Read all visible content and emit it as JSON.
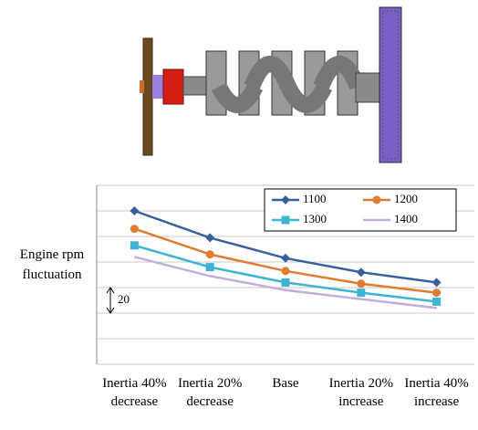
{
  "chart_data": {
    "type": "line",
    "y_label": "Engine rpm fluctuation",
    "categories": [
      "Inertia 40% decrease",
      "Inertia 20% decrease",
      "Base",
      "Inertia 20% increase",
      "Inertia 40% increase"
    ],
    "series": [
      {
        "name": "1100",
        "color": "#3b5f9e",
        "marker": "diamond",
        "values": [
          120,
          99,
          83,
          72,
          64
        ]
      },
      {
        "name": "1200",
        "color": "#e07b32",
        "marker": "circle",
        "values": [
          106,
          86,
          73,
          63,
          56
        ]
      },
      {
        "name": "1300",
        "color": "#3cb4d2",
        "marker": "square",
        "values": [
          93,
          76,
          64,
          56,
          49
        ]
      },
      {
        "name": "1400",
        "color": "#c3aedb",
        "marker": "none",
        "values": [
          84,
          69,
          58,
          51,
          44
        ]
      }
    ],
    "ylim": [
      0,
      140
    ],
    "yticks": [
      0,
      20,
      40,
      60,
      80,
      100,
      120,
      140
    ],
    "grid": true,
    "scale_bar": 20,
    "legend": "top-right"
  }
}
